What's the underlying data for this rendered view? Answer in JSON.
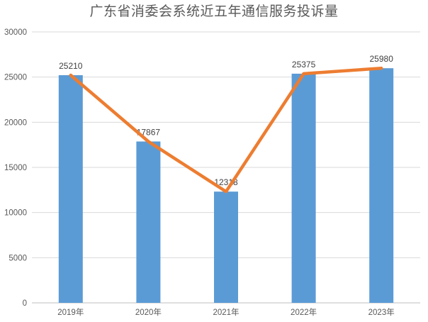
{
  "chart_data": {
    "type": "bar",
    "overlay_line": true,
    "title": "广东省消委会系统近五年通信服务投诉量",
    "categories": [
      "2019年",
      "2020年",
      "2021年",
      "2022年",
      "2023年"
    ],
    "values": [
      25210,
      17867,
      12318,
      25375,
      25980
    ],
    "data_labels": [
      "25210",
      "17867",
      "12318",
      "25375",
      "25980"
    ],
    "xlabel": "",
    "ylabel": "",
    "ylim": [
      0,
      30000
    ],
    "ytick_interval": 5000,
    "ytick_labels": [
      "0",
      "5000",
      "10000",
      "15000",
      "20000",
      "25000",
      "30000"
    ],
    "grid": true,
    "legend_position": "none",
    "colors": {
      "bar": "#5b9bd5",
      "line": "#ed7d31",
      "gridline": "#d9d9d9",
      "axis_line": "#bfbfbf",
      "title_text": "#595959",
      "tick_text": "#595959",
      "data_label_text": "#404040",
      "background": "#ffffff"
    }
  }
}
